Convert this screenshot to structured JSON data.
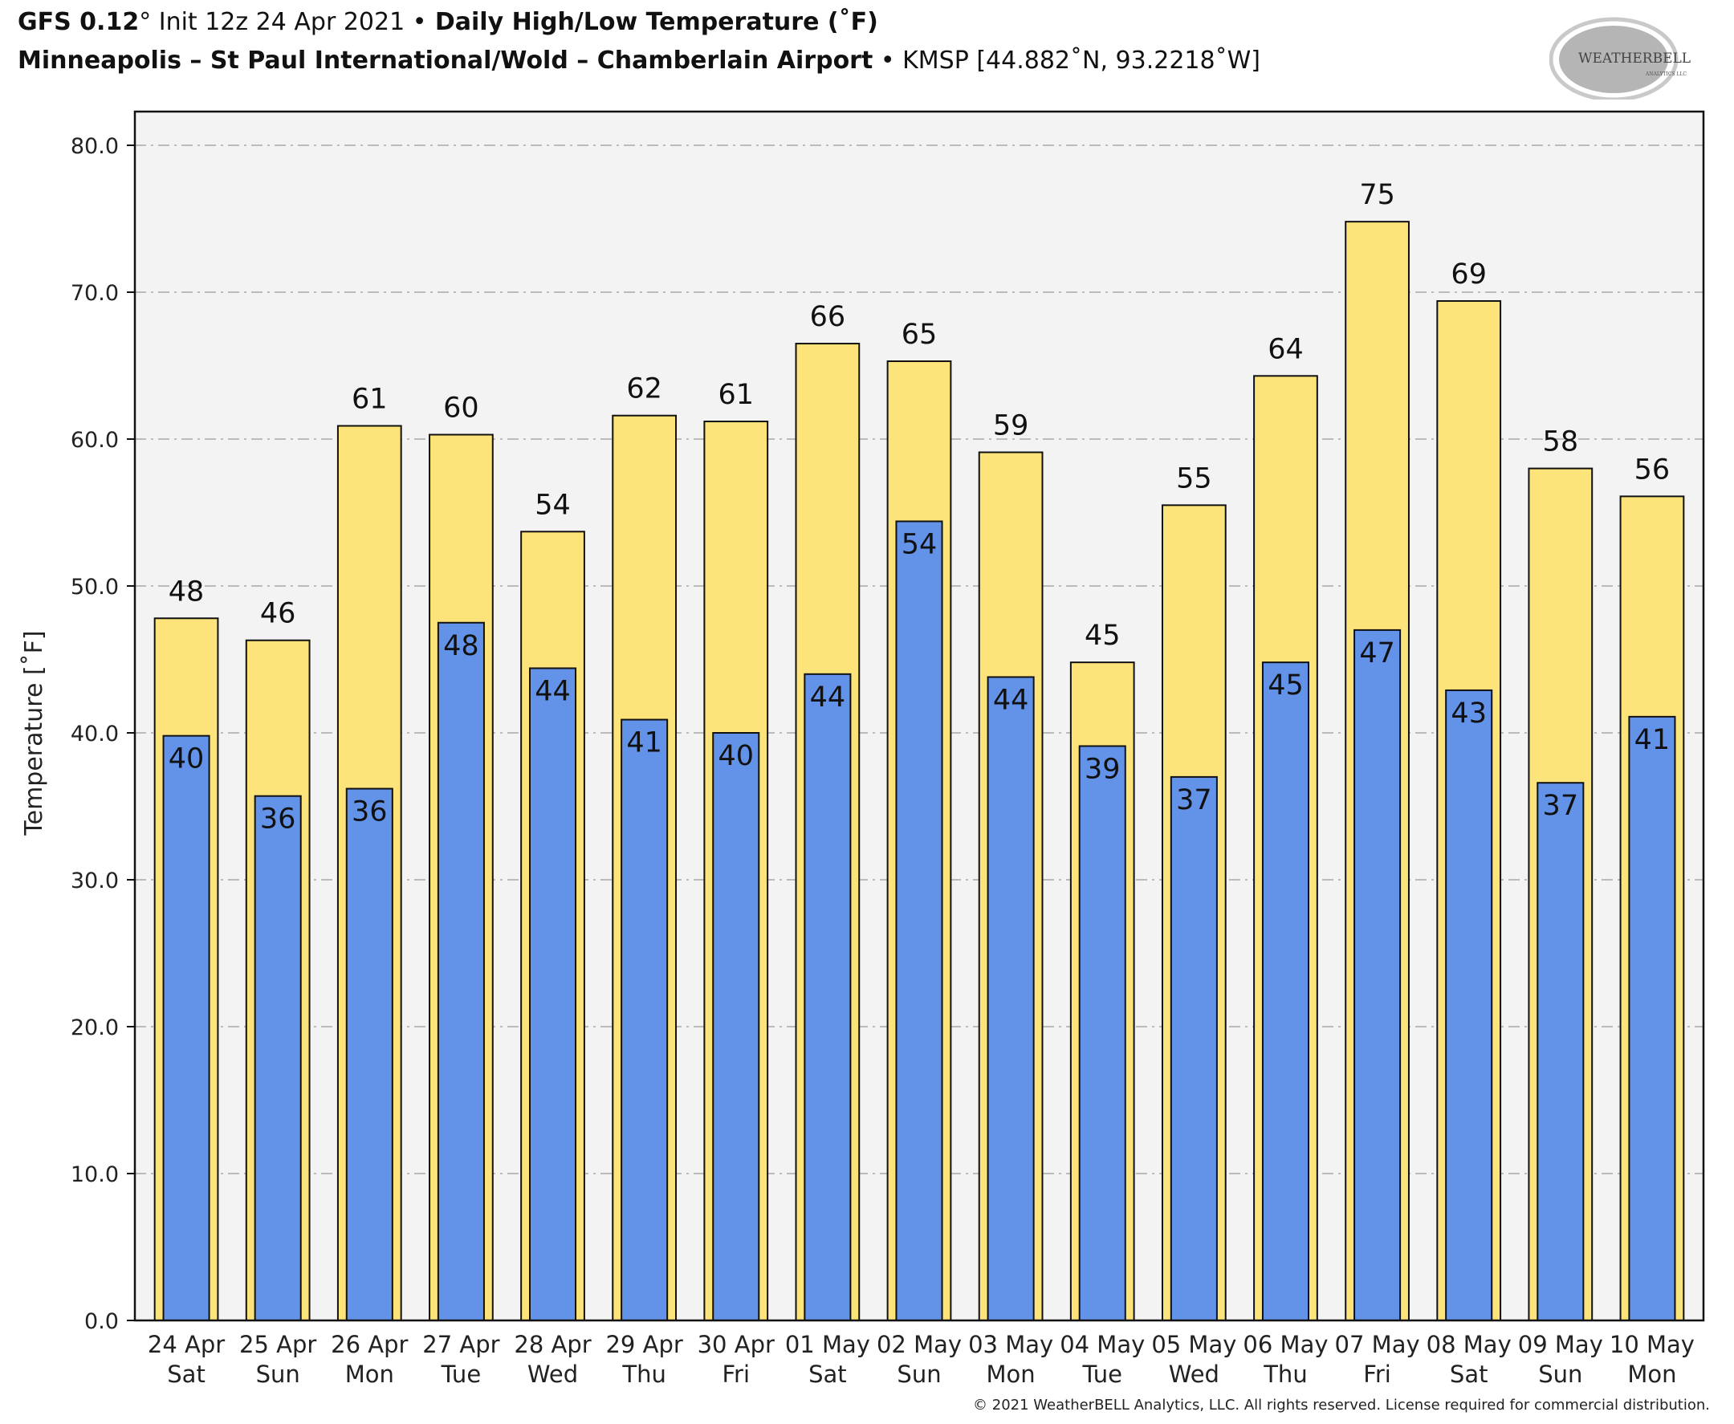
{
  "header": {
    "model": "GFS 0.12",
    "model_deg": "°",
    "init": " Init 12z 24 Apr 2021 ",
    "bullet": "•",
    "product": " Daily High/Low Temperature (˚F)",
    "station_name": "Minneapolis – St Paul International/Wold – Chamberlain Airport",
    "station_info": " KMSP [44.882˚N, 93.2218˚W]"
  },
  "logo": {
    "text_main": "WEATHERBELL",
    "text_sub": "ANALYTICS LLC"
  },
  "footer": {
    "copyright": "© 2021 WeatherBELL Analytics, LLC. All rights reserved. License required for commercial distribution."
  },
  "colors": {
    "high": "#FDE47A",
    "low": "#6393E8",
    "plot_bg": "#F3F3F3",
    "grid": "#BBBBBB",
    "edge": "#111111"
  },
  "chart_data": {
    "type": "bar",
    "title": "Daily High/Low Temperature (˚F)",
    "xlabel": "",
    "ylabel": "Temperature [˚F]",
    "ylim": [
      0,
      80
    ],
    "yticks": [
      "0.0",
      "10.0",
      "20.0",
      "30.0",
      "40.0",
      "50.0",
      "60.0",
      "70.0",
      "80.0"
    ],
    "ytick_values": [
      0,
      10,
      20,
      30,
      40,
      50,
      60,
      70,
      80
    ],
    "grid": true,
    "categories": [
      [
        "24 Apr",
        "Sat"
      ],
      [
        "25 Apr",
        "Sun"
      ],
      [
        "26 Apr",
        "Mon"
      ],
      [
        "27 Apr",
        "Tue"
      ],
      [
        "28 Apr",
        "Wed"
      ],
      [
        "29 Apr",
        "Thu"
      ],
      [
        "30 Apr",
        "Fri"
      ],
      [
        "01 May",
        "Sat"
      ],
      [
        "02 May",
        "Sun"
      ],
      [
        "03 May",
        "Mon"
      ],
      [
        "04 May",
        "Tue"
      ],
      [
        "05 May",
        "Wed"
      ],
      [
        "06 May",
        "Thu"
      ],
      [
        "07 May",
        "Fri"
      ],
      [
        "08 May",
        "Sat"
      ],
      [
        "09 May",
        "Sun"
      ],
      [
        "10 May",
        "Mon"
      ]
    ],
    "series": [
      {
        "name": "High",
        "values": [
          47.8,
          46.3,
          60.9,
          60.3,
          53.7,
          61.6,
          61.2,
          66.5,
          65.3,
          59.1,
          44.8,
          55.5,
          64.3,
          74.8,
          69.4,
          58.0,
          56.1
        ],
        "labels": [
          "48",
          "46",
          "61",
          "60",
          "54",
          "62",
          "61",
          "66",
          "65",
          "59",
          "45",
          "55",
          "64",
          "75",
          "69",
          "58",
          "56"
        ]
      },
      {
        "name": "Low",
        "values": [
          39.8,
          35.7,
          36.2,
          47.5,
          44.4,
          40.9,
          40.0,
          44.0,
          54.4,
          43.8,
          39.1,
          37.0,
          44.8,
          47.0,
          42.9,
          36.6,
          41.1
        ],
        "labels": [
          "40",
          "36",
          "36",
          "48",
          "44",
          "41",
          "40",
          "44",
          "54",
          "44",
          "39",
          "37",
          "45",
          "47",
          "43",
          "37",
          "41"
        ]
      }
    ]
  }
}
